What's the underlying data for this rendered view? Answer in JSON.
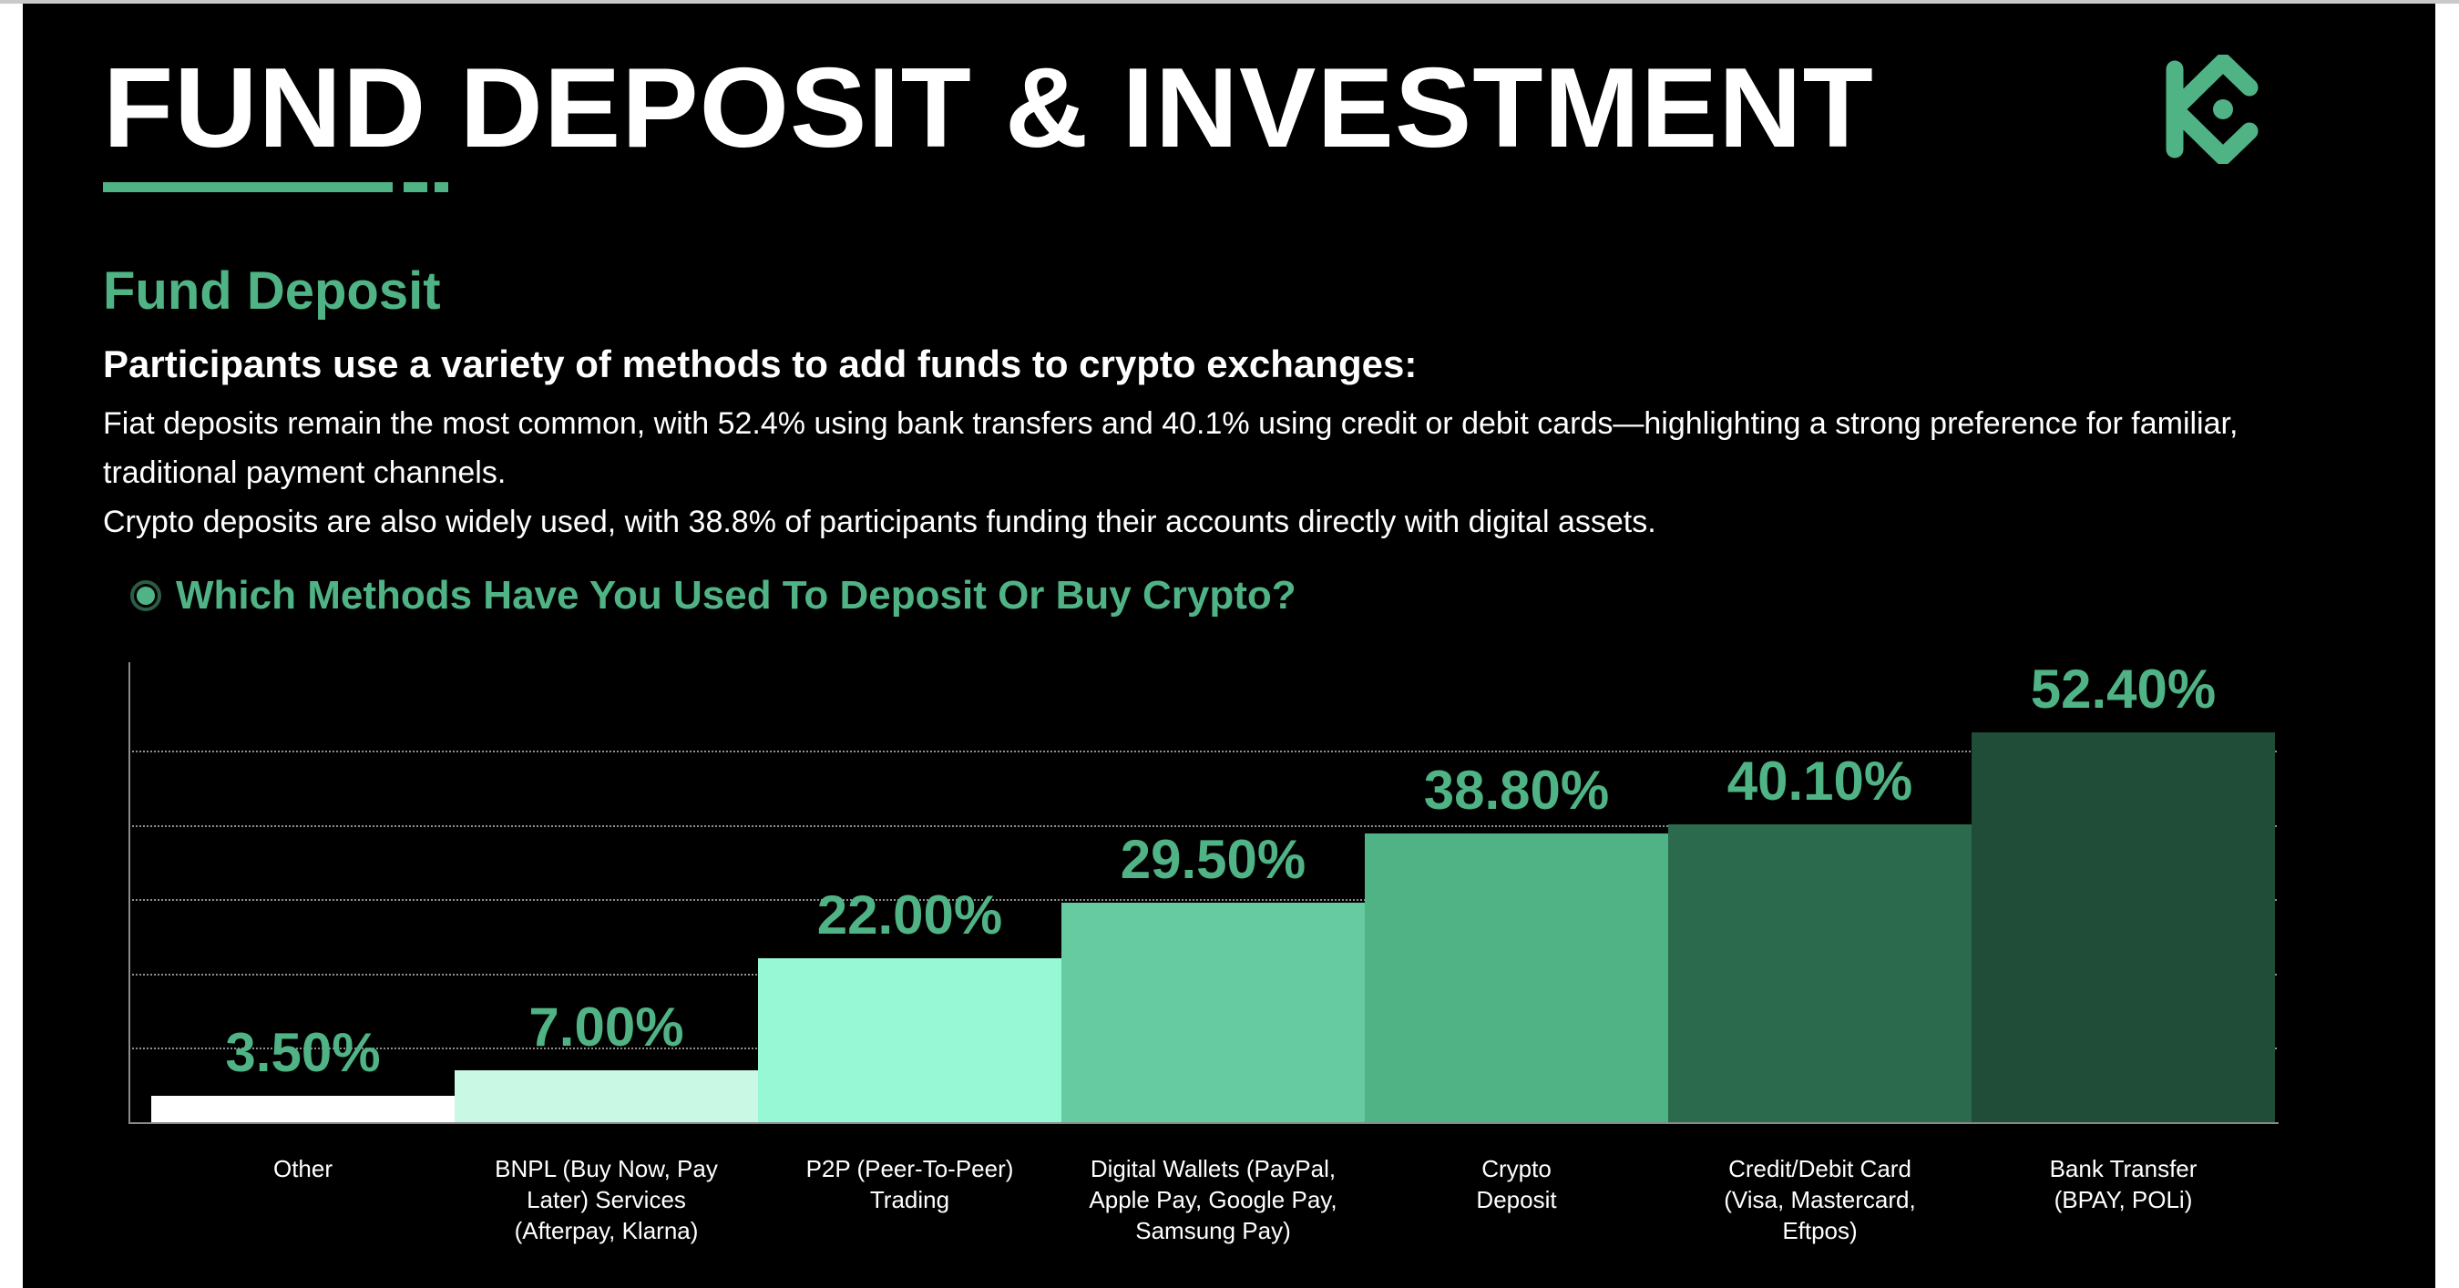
{
  "header": {
    "title": "FUND DEPOSIT & INVESTMENT",
    "logo": "kucoin-logo-icon",
    "accent_color": "#50b385"
  },
  "section": {
    "title": "Fund Deposit",
    "lead": "Participants use a variety of methods to add funds to crypto exchanges:",
    "paragraphs": [
      "Fiat deposits remain the most common, with 52.4% using bank transfers and 40.1% using credit or debit cards—highlighting a strong preference for familiar, traditional payment channels.",
      "Crypto deposits are also widely used, with 38.8% of participants funding their accounts directly with digital assets."
    ]
  },
  "question": {
    "icon": "radio-bullet-icon",
    "text": "Which Methods Have You Used To Deposit Or Buy Crypto?"
  },
  "chart_data": {
    "type": "bar",
    "title": "Which Methods Have You Used To Deposit Or Buy Crypto?",
    "xlabel": "",
    "ylabel": "",
    "ylim": [
      0,
      60
    ],
    "grid": true,
    "gridlines": [
      10,
      20,
      30,
      40,
      50
    ],
    "legend": "none",
    "categories": [
      "Other",
      "BNPL (Buy Now, Pay Later) Services (Afterpay, Klarna)",
      "P2P (Peer-To-Peer) Trading",
      "Digital Wallets (PayPal, Apple Pay, Google Pay, Samsung Pay)",
      "Crypto Deposit",
      "Credit/Debit Card (Visa, Mastercard, Eftpos)",
      "Bank Transfer (BPAY, POLi)"
    ],
    "values": [
      3.5,
      7.0,
      22.0,
      29.5,
      38.8,
      40.1,
      52.4
    ],
    "value_labels": [
      "3.50%",
      "7.00%",
      "22.00%",
      "29.50%",
      "38.80%",
      "40.10%",
      "52.40%"
    ],
    "colors": [
      "#ffffff",
      "#c9f8e5",
      "#96f8d5",
      "#66cba0",
      "#50b385",
      "#2b6a4d",
      "#1f4d38"
    ],
    "label_lines": [
      [
        "Other"
      ],
      [
        "BNPL (Buy Now, Pay",
        "Later) Services",
        "(Afterpay, Klarna)"
      ],
      [
        "P2P (Peer-To-Peer)",
        "Trading"
      ],
      [
        "Digital Wallets (PayPal,",
        "Apple Pay, Google Pay,",
        "Samsung Pay)"
      ],
      [
        "Crypto",
        "Deposit"
      ],
      [
        "Credit/Debit Card",
        "(Visa, Mastercard,",
        "Eftpos)"
      ],
      [
        "Bank Transfer",
        "(BPAY, POLi)"
      ]
    ]
  }
}
